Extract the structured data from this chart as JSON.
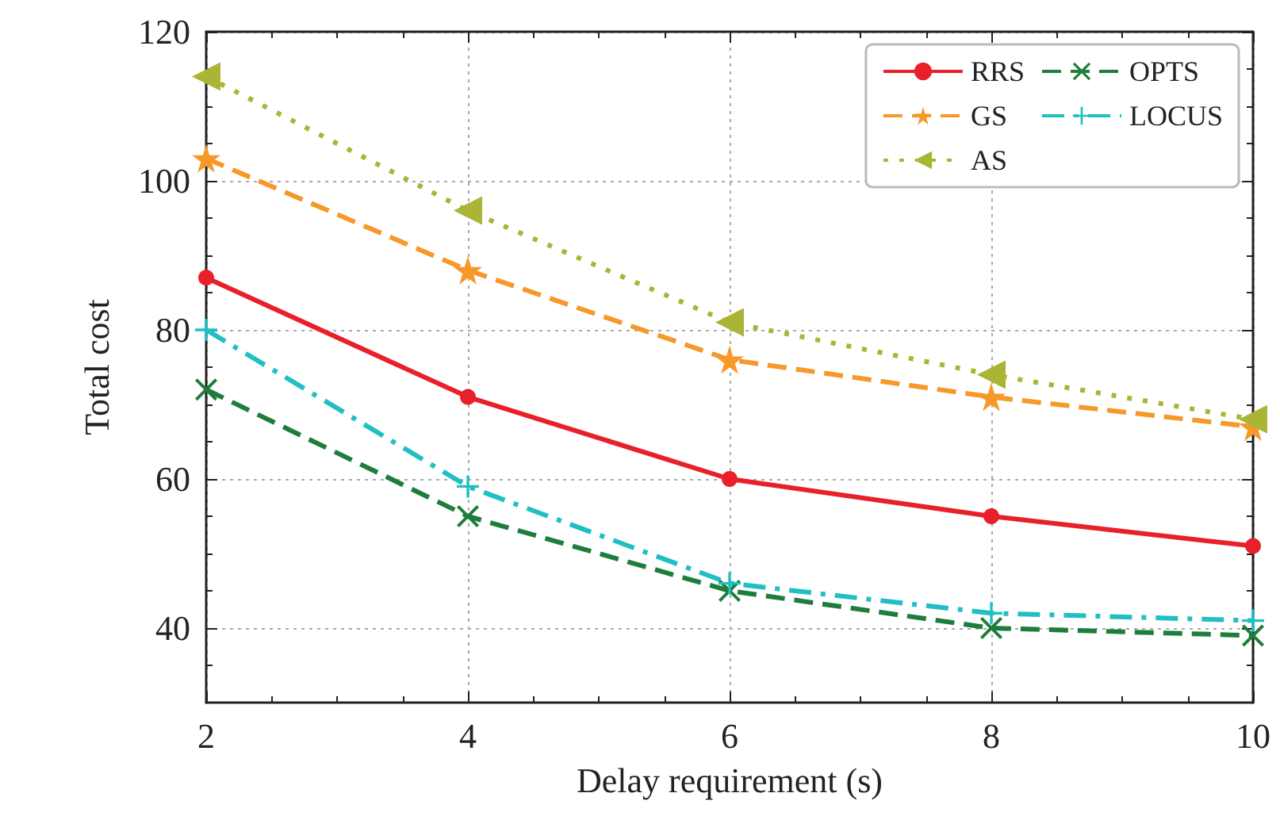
{
  "chart_data": {
    "type": "line",
    "xlabel": "Delay requirement (s)",
    "ylabel": "Total cost",
    "x": [
      2,
      4,
      6,
      8,
      10
    ],
    "xlim": [
      2,
      10
    ],
    "xticks": [
      2,
      4,
      6,
      8,
      10
    ],
    "ylim": [
      30,
      120
    ],
    "yticks": [
      40,
      60,
      80,
      100,
      120
    ],
    "grid": true,
    "legend": "top right",
    "series": [
      {
        "name": "RRS",
        "color": "#e8202a",
        "marker": "circle",
        "line_style": "solid",
        "values": [
          87,
          71,
          60,
          55,
          51
        ]
      },
      {
        "name": "GS",
        "color": "#f7982a",
        "marker": "star",
        "line_style": "dashed",
        "values": [
          103,
          88,
          76,
          71,
          67
        ]
      },
      {
        "name": "AS",
        "color": "#aab435",
        "marker": "triangle",
        "line_style": "dotted",
        "values": [
          114,
          96,
          81,
          74,
          68
        ]
      },
      {
        "name": "OPTS",
        "color": "#1e7d3c",
        "marker": "cross",
        "line_style": "dashed",
        "values": [
          72,
          55,
          45,
          40,
          39
        ]
      },
      {
        "name": "LOCUS",
        "color": "#20bfc4",
        "marker": "plus",
        "line_style": "dashdot",
        "values": [
          80,
          59,
          46,
          42,
          41
        ]
      }
    ]
  }
}
